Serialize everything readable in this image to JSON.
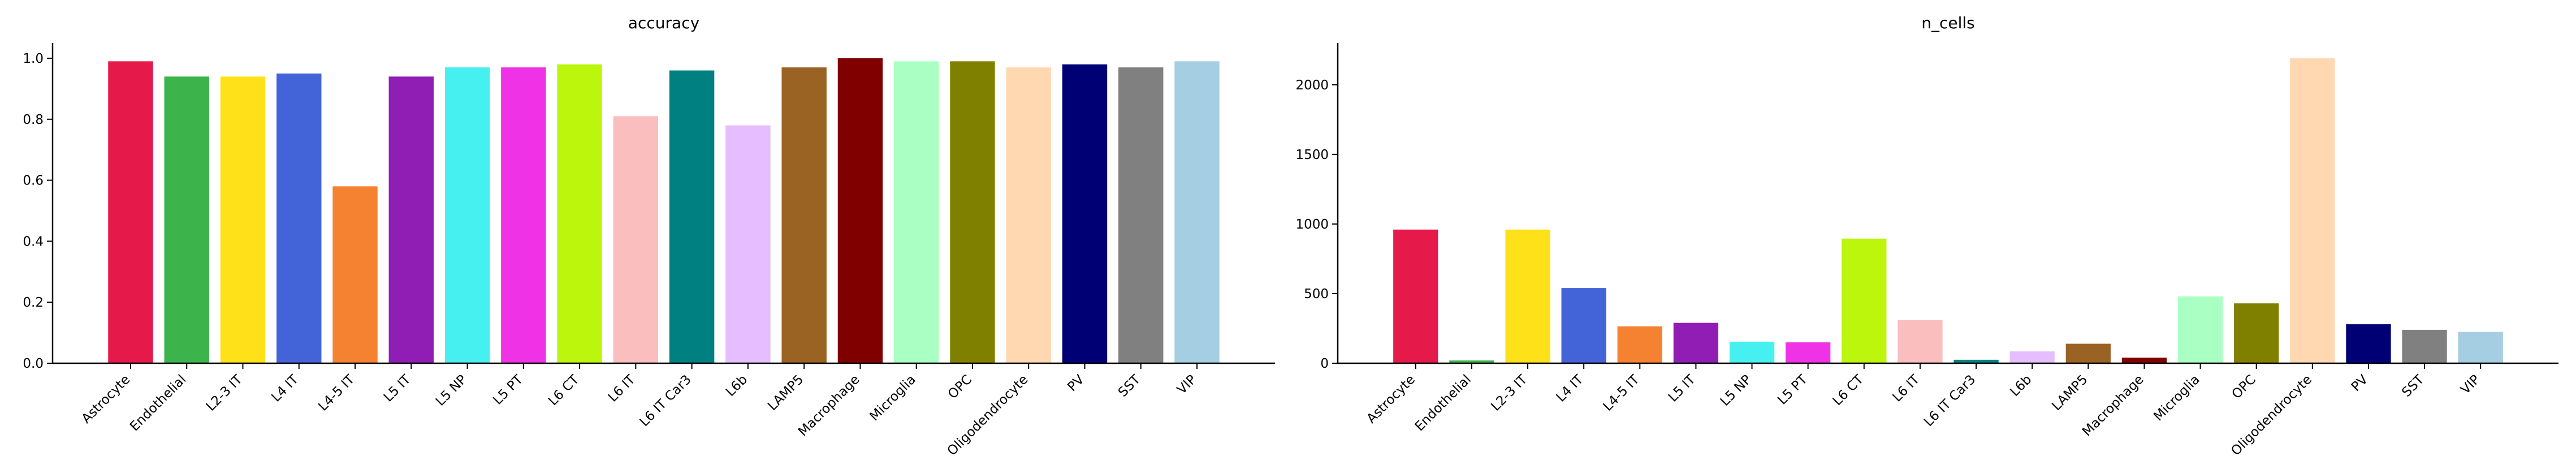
{
  "chart_data": [
    {
      "type": "bar",
      "title": "accuracy",
      "categories": [
        "Astrocyte",
        "Endothelial",
        "L2-3 IT",
        "L4 IT",
        "L4-5 IT",
        "L5 IT",
        "L5 NP",
        "L5 PT",
        "L6 CT",
        "L6 IT",
        "L6 IT Car3",
        "L6b",
        "LAMP5",
        "Macrophage",
        "Microglia",
        "OPC",
        "Oligodendrocyte",
        "PV",
        "SST",
        "VIP"
      ],
      "values": [
        0.99,
        0.94,
        0.94,
        0.95,
        0.58,
        0.94,
        0.97,
        0.97,
        0.98,
        0.81,
        0.96,
        0.78,
        0.97,
        1.0,
        0.99,
        0.99,
        0.97,
        0.98,
        0.97,
        0.99
      ],
      "colors": [
        "#e6194b",
        "#3cb44b",
        "#ffe119",
        "#4363d8",
        "#f58231",
        "#911eb4",
        "#46f0f0",
        "#f032e6",
        "#bcf60c",
        "#fabebe",
        "#008080",
        "#e6beff",
        "#9a6324",
        "#800000",
        "#aaffc3",
        "#808000",
        "#ffd8b1",
        "#000075",
        "#808080",
        "#a6cee3"
      ],
      "ylim": [
        0,
        1.05
      ],
      "yticks": [
        {
          "value": 0,
          "label": "0.0"
        },
        {
          "value": 0.2,
          "label": "0.2"
        },
        {
          "value": 0.4,
          "label": "0.4"
        },
        {
          "value": 0.6,
          "label": "0.6"
        },
        {
          "value": 0.8,
          "label": "0.8"
        },
        {
          "value": 1,
          "label": "1.0"
        }
      ]
    },
    {
      "type": "bar",
      "title": "n_cells",
      "categories": [
        "Astrocyte",
        "Endothelial",
        "L2-3 IT",
        "L4 IT",
        "L4-5 IT",
        "L5 IT",
        "L5 NP",
        "L5 PT",
        "L6 CT",
        "L6 IT",
        "L6 IT Car3",
        "L6b",
        "LAMP5",
        "Macrophage",
        "Microglia",
        "OPC",
        "Oligodendrocyte",
        "PV",
        "SST",
        "VIP"
      ],
      "values": [
        960,
        20,
        960,
        540,
        265,
        290,
        155,
        150,
        895,
        310,
        25,
        85,
        140,
        40,
        480,
        430,
        2190,
        280,
        240,
        225
      ],
      "colors": [
        "#e6194b",
        "#3cb44b",
        "#ffe119",
        "#4363d8",
        "#f58231",
        "#911eb4",
        "#46f0f0",
        "#f032e6",
        "#bcf60c",
        "#fabebe",
        "#008080",
        "#e6beff",
        "#9a6324",
        "#800000",
        "#aaffc3",
        "#808000",
        "#ffd8b1",
        "#000075",
        "#808080",
        "#a6cee3"
      ],
      "ylim": [
        0,
        2300
      ],
      "yticks": [
        0,
        500,
        1000,
        1500,
        2000
      ]
    }
  ]
}
